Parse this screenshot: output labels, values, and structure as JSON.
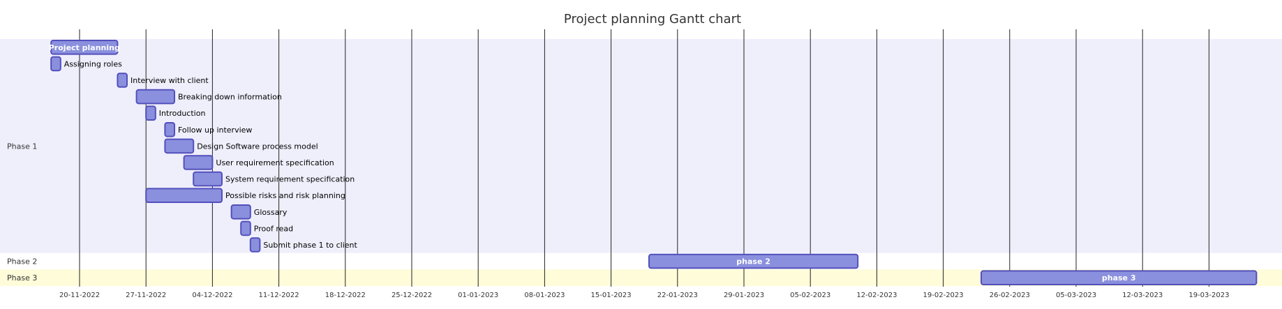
{
  "chart_data": {
    "type": "gantt",
    "title": "Project planning Gantt chart",
    "colors": {
      "bar_fill": "#8a90dd",
      "bar_stroke": "#534fbc",
      "section_band_1": "#efeffc",
      "section_band_2": "#ffffff",
      "section_band_3": "#fefcd9",
      "gridline": "#222222",
      "text": "#333333"
    },
    "x_range": [
      "2022-11-13",
      "2023-03-27"
    ],
    "x_ticks": [
      "20-11-2022",
      "27-11-2022",
      "04-12-2022",
      "11-12-2022",
      "18-12-2022",
      "25-12-2022",
      "01-01-2023",
      "08-01-2023",
      "15-01-2023",
      "22-01-2023",
      "29-01-2023",
      "05-02-2023",
      "12-02-2023",
      "19-02-2023",
      "26-02-2023",
      "05-03-2023",
      "12-03-2023",
      "19-03-2023"
    ],
    "sections": [
      {
        "name": "Phase 1",
        "tasks": [
          {
            "name": "Project planning",
            "start": "2022-11-17",
            "end": "2022-11-24",
            "label": "inside"
          },
          {
            "name": "Assigning roles",
            "start": "2022-11-17",
            "end": "2022-11-18"
          },
          {
            "name": "Interview with client",
            "start": "2022-11-24",
            "end": "2022-11-25"
          },
          {
            "name": "Breaking down information",
            "start": "2022-11-26",
            "end": "2022-11-30"
          },
          {
            "name": "Introduction",
            "start": "2022-11-27",
            "end": "2022-11-28"
          },
          {
            "name": "Follow up interview",
            "start": "2022-11-29",
            "end": "2022-11-30"
          },
          {
            "name": "Design Software process model",
            "start": "2022-11-29",
            "end": "2022-12-02"
          },
          {
            "name": "User requirement specification",
            "start": "2022-12-01",
            "end": "2022-12-04"
          },
          {
            "name": "System requirement specification",
            "start": "2022-12-02",
            "end": "2022-12-05"
          },
          {
            "name": "Possible risks and risk planning",
            "start": "2022-11-27",
            "end": "2022-12-05"
          },
          {
            "name": "Glossary",
            "start": "2022-12-06",
            "end": "2022-12-08"
          },
          {
            "name": "Proof read",
            "start": "2022-12-07",
            "end": "2022-12-08"
          },
          {
            "name": "Submit phase 1 to client",
            "start": "2022-12-08",
            "end": "2022-12-09"
          }
        ]
      },
      {
        "name": "Phase 2",
        "tasks": [
          {
            "name": "phase 2",
            "start": "2023-01-19",
            "end": "2023-02-10",
            "label": "inside"
          }
        ]
      },
      {
        "name": "Phase 3",
        "tasks": [
          {
            "name": "phase 3",
            "start": "2023-02-23",
            "end": "2023-03-24",
            "label": "inside"
          }
        ]
      }
    ]
  }
}
